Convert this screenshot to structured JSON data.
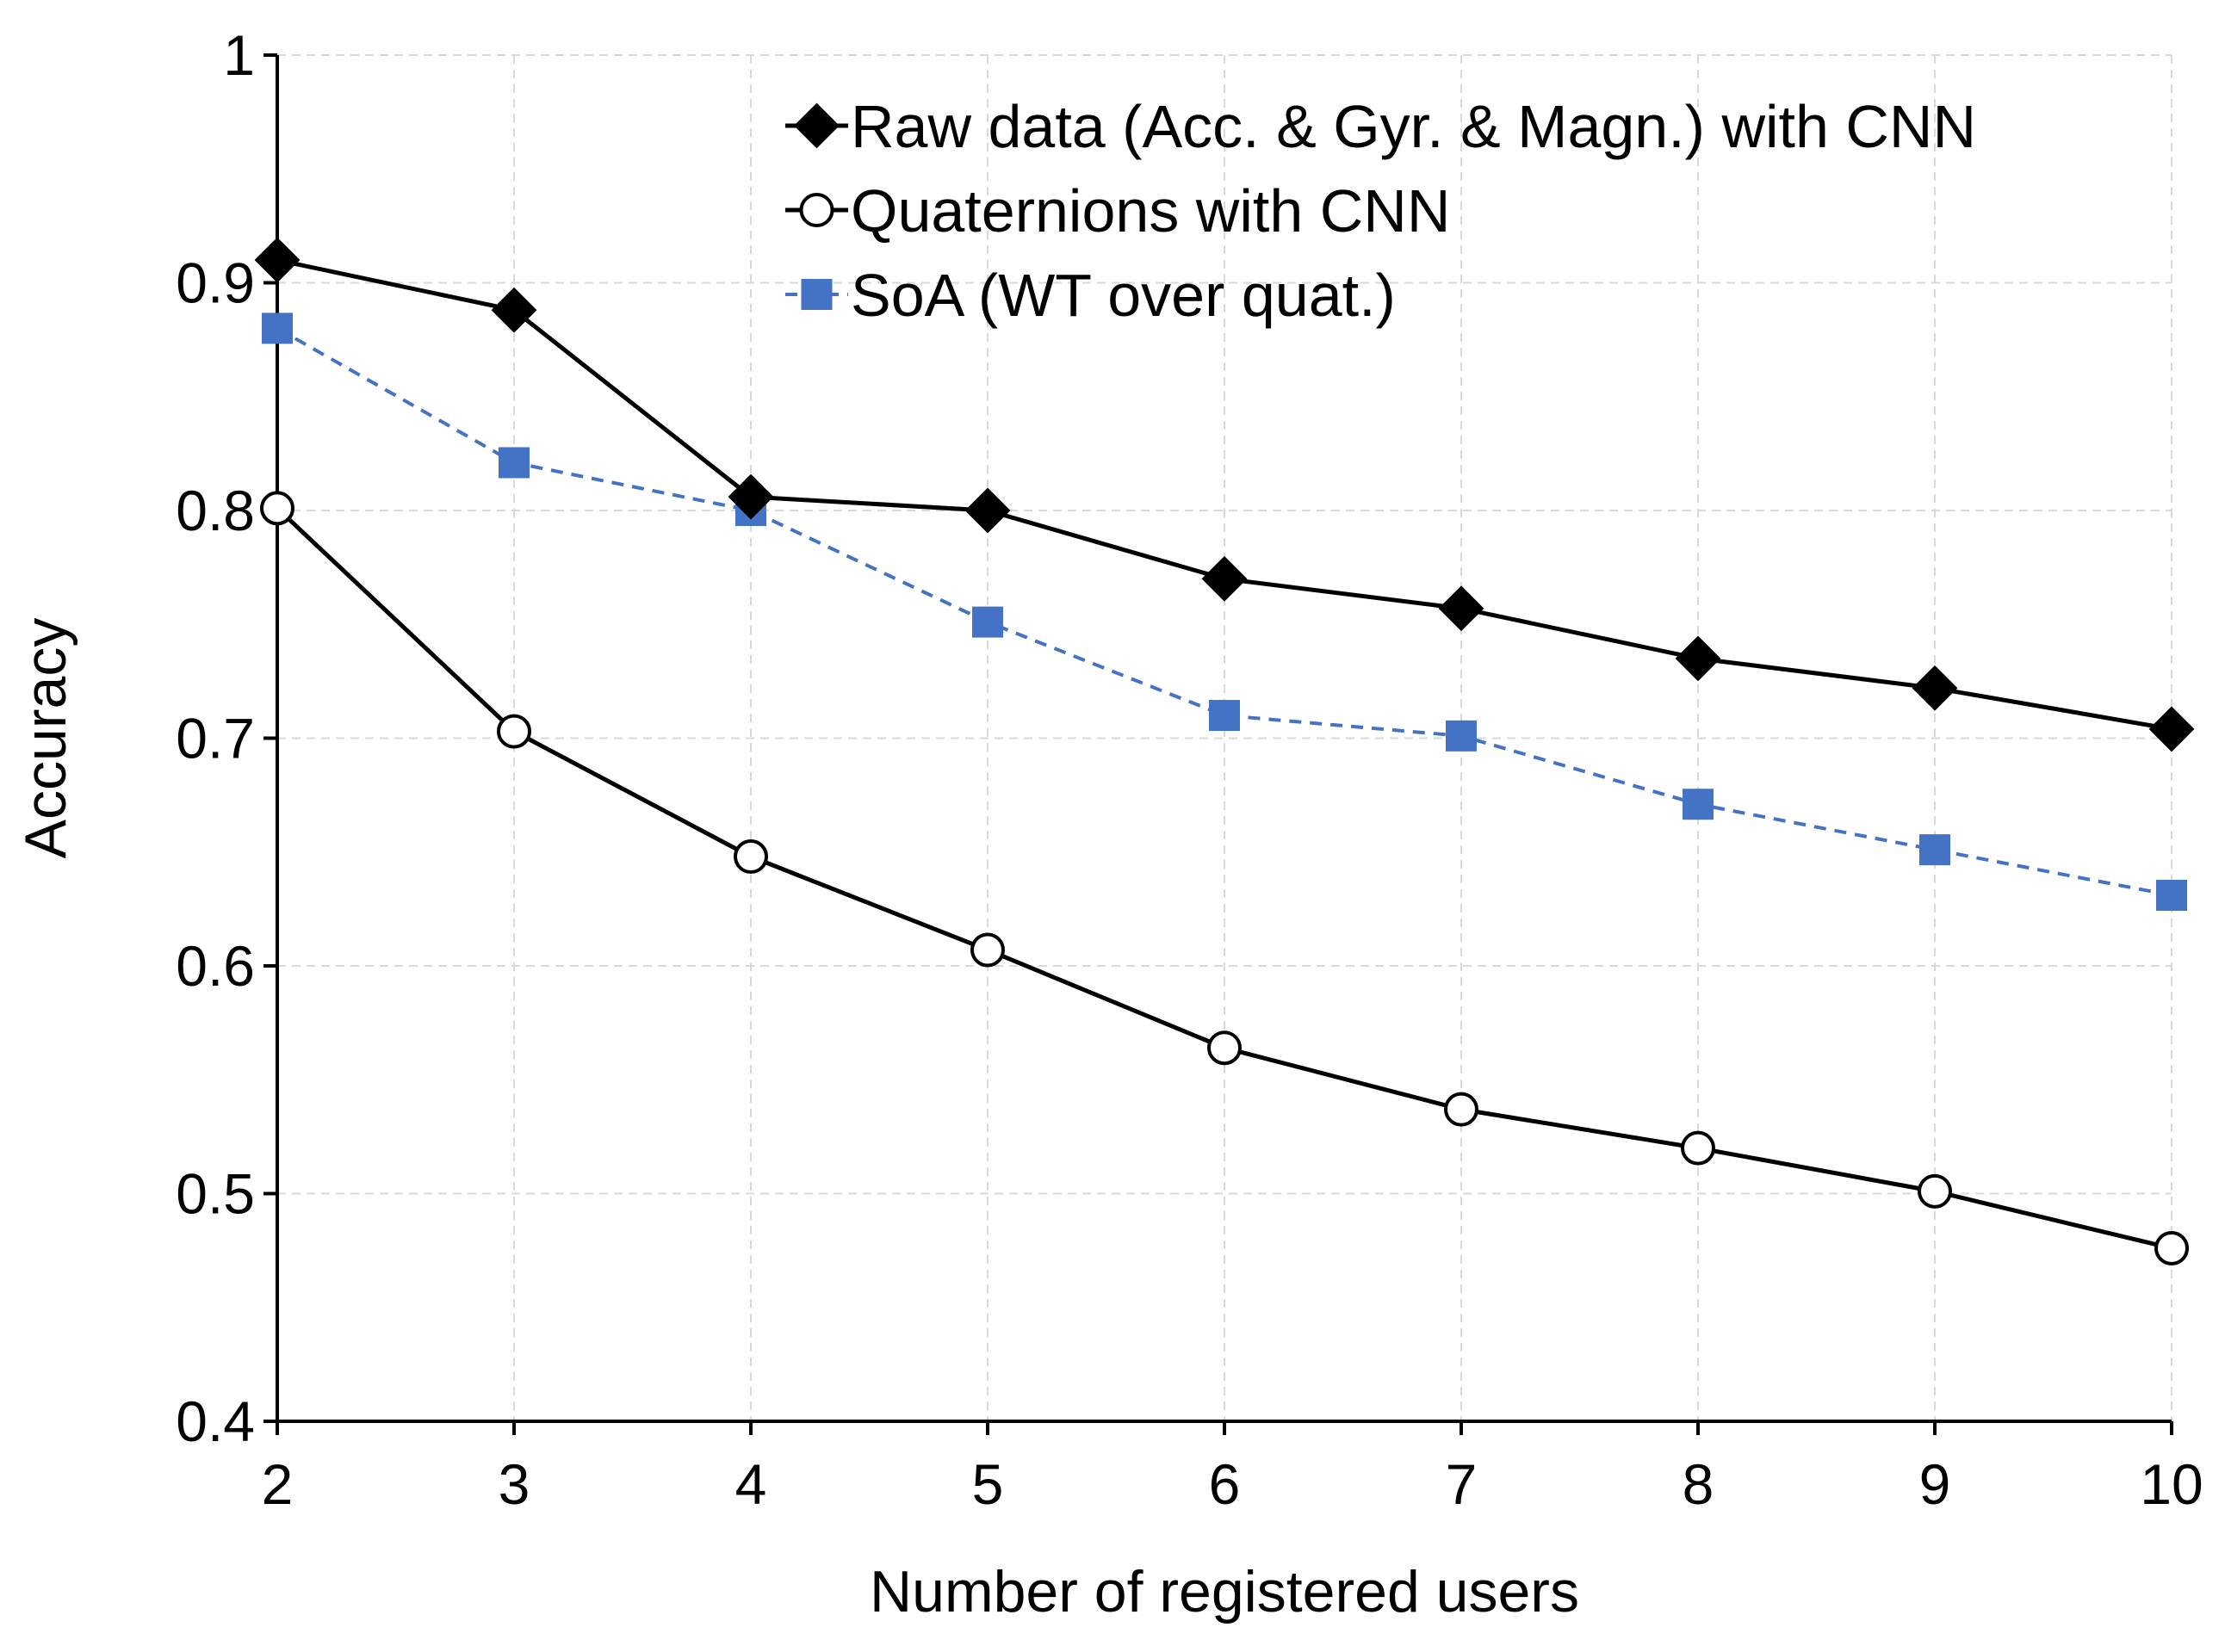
{
  "chart_data": {
    "type": "line",
    "xlabel": "Number of registered users",
    "ylabel": "Accuracy",
    "xlim": [
      2,
      10
    ],
    "ylim": [
      0.4,
      1.0
    ],
    "x": [
      2,
      3,
      4,
      5,
      6,
      7,
      8,
      9,
      10
    ],
    "x_tick_labels": [
      "2",
      "3",
      "4",
      "5",
      "6",
      "7",
      "8",
      "9",
      "10"
    ],
    "y_ticks": [
      0.4,
      0.5,
      0.6,
      0.7,
      0.8,
      0.9,
      1.0
    ],
    "y_tick_labels": [
      "0.4",
      "0.5",
      "0.6",
      "0.7",
      "0.8",
      "0.9",
      "1"
    ],
    "grid": true,
    "legend_position": "top-right",
    "series": [
      {
        "name": "Raw data (Acc. & Gyr. & Magn.) with CNN",
        "marker": "diamond",
        "line_style": "solid",
        "color": "#000000",
        "values": [
          0.91,
          0.888,
          0.806,
          0.8,
          0.77,
          0.757,
          0.735,
          0.722,
          0.704
        ]
      },
      {
        "name": "Quaternions with CNN",
        "marker": "circle-open",
        "line_style": "solid",
        "color": "#000000",
        "values": [
          0.801,
          0.703,
          0.648,
          0.607,
          0.564,
          0.537,
          0.52,
          0.501,
          0.476
        ]
      },
      {
        "name": "SoA (WT over quat.)",
        "marker": "square",
        "line_style": "dashed",
        "color": "#4472C4",
        "values": [
          0.88,
          0.821,
          0.8,
          0.751,
          0.71,
          0.701,
          0.671,
          0.651,
          0.631
        ]
      }
    ]
  }
}
